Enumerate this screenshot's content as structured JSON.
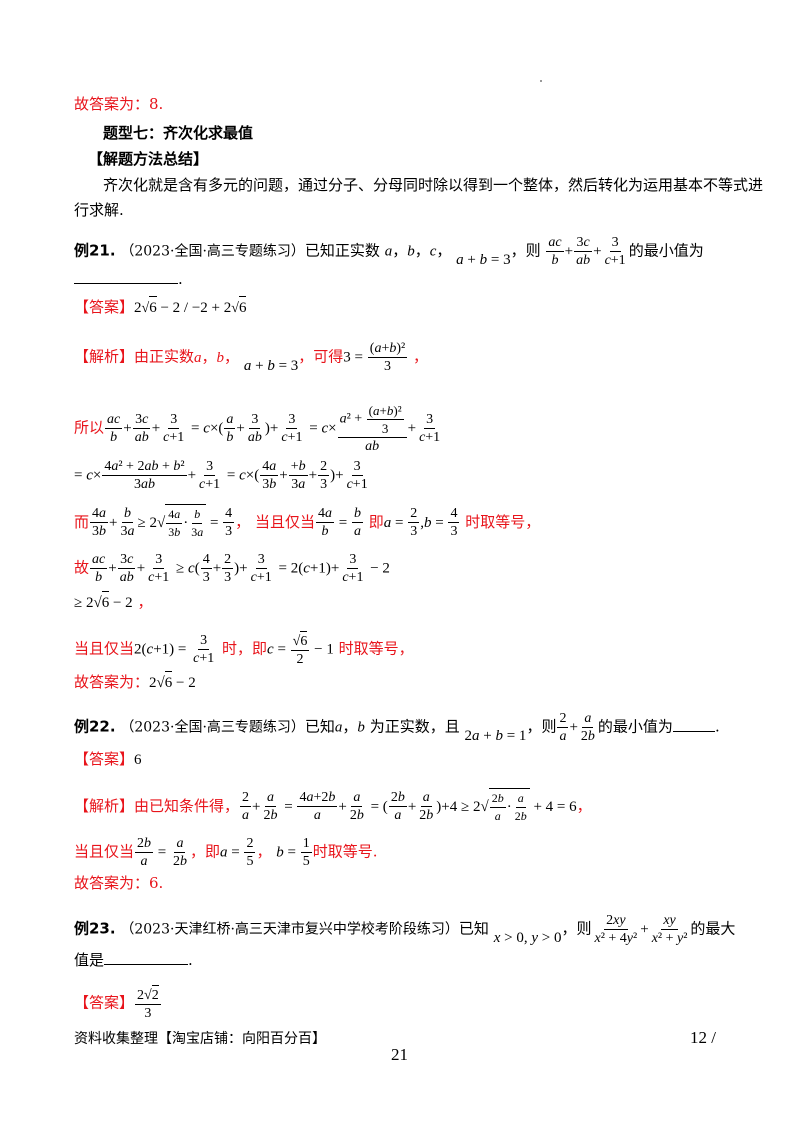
{
  "answer_ex20": "故答案为：8.",
  "section": {
    "title": "题型七：齐次化求最值",
    "method_heading": "【解题方法总结】",
    "method_text_1": "齐次化就是含有多元的问题，通过分子、分母同时除以得到一个整体，然后转化为运用基本不等式进",
    "method_text_2": "行求解."
  },
  "ex21": {
    "label": "例21.",
    "source": "（2023·全国·高三专题练习）",
    "q_text_1": "已知正实数",
    "q_text_2": "，则",
    "q_text_3": "的最小值为",
    "answer_tag": "【答案】",
    "analysis_tag": "【解析】",
    "analysis_1": "由正实数",
    "analysis_2": "，可得",
    "so": "所以",
    "and": "而",
    "iff": "当且仅当",
    "iff_then": "即",
    "equal_sign": "时取等号，",
    "hence": "故",
    "iff2_when": "时，即",
    "iff2_end": "时取等号，",
    "final": "故答案为："
  },
  "ex22": {
    "label": "例22.",
    "source": "（2023·全国·高三专题练习）",
    "q_text_1": "已知",
    "q_text_2": "为正实数，且",
    "q_text_3": "，则",
    "q_text_4": "的最小值为",
    "answer_tag": "【答案】",
    "answer": "6",
    "analysis_tag": "【解析】",
    "analysis_1": "由已知条件得，",
    "iff": "当且仅当",
    "iff_then": "，即",
    "iff_end": "时取等号.",
    "final": "故答案为：6."
  },
  "ex23": {
    "label": "例23.",
    "source": "（2023·天津红桥·高三天津市复兴中学校考阶段练习）",
    "q_text_1": "已知",
    "q_text_2": "，则",
    "q_text_3": "的最大",
    "q_text_4": "值是",
    "answer_tag": "【答案】"
  },
  "footer": {
    "left": "资料收集整理【淘宝店铺：向阳百分百】",
    "right": "12 /",
    "page": "21"
  }
}
